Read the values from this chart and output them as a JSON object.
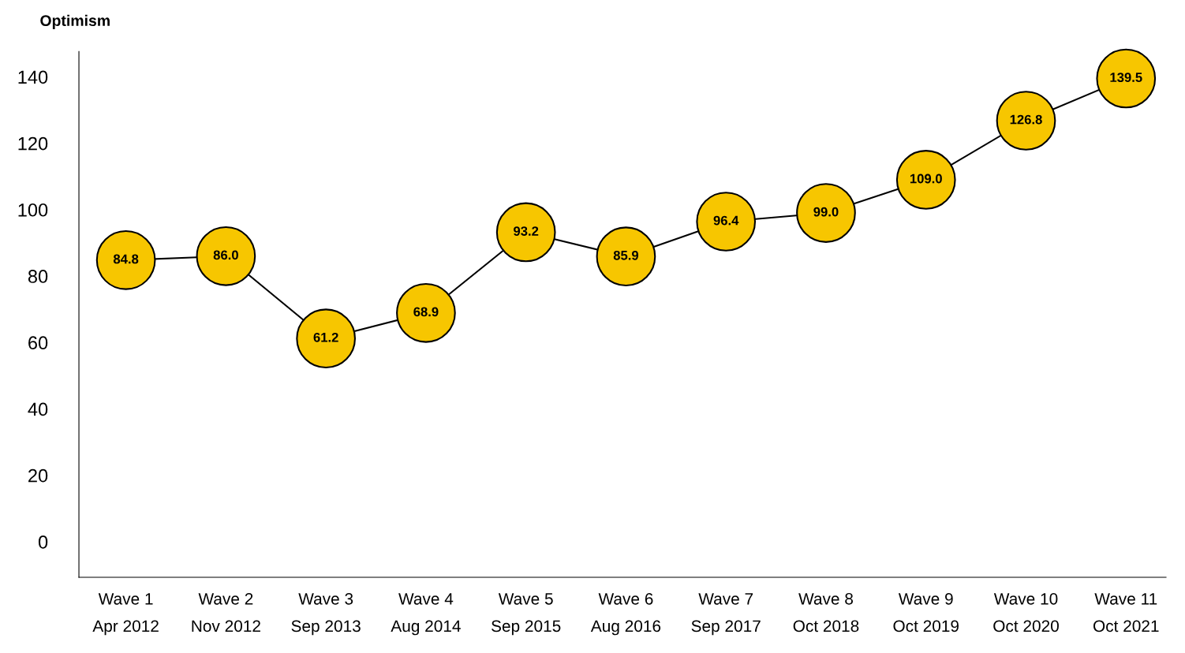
{
  "chart_data": {
    "type": "line",
    "ylabel": "Optimism",
    "categories": [
      "Wave 1\nApr 2012",
      "Wave 2\nNov 2012",
      "Wave 3\nSep 2013",
      "Wave 4\nAug 2014",
      "Wave 5\nSep 2015",
      "Wave 6\nAug 2016",
      "Wave 7\nSep 2017",
      "Wave 8\nOct 2018",
      "Wave 9\nOct 2019",
      "Wave 10\nOct 2020",
      "Wave 11\nOct 2021"
    ],
    "series": [
      {
        "color": "#000000",
        "marker": "none",
        "values": [
          84.8,
          86.0,
          61.2,
          68.9,
          93.2,
          85.9,
          96.4,
          99.0,
          109.0,
          126.8,
          139.5
        ]
      },
      {
        "type": "scatter",
        "color": "#f7c600",
        "marker": "circle",
        "values": [
          84.8,
          86.0,
          61.2,
          68.9,
          93.2,
          85.9,
          96.4,
          99.0,
          109.0,
          126.8,
          139.5
        ],
        "value_labels": [
          "84.8",
          "86.0",
          "61.2",
          "68.9",
          "93.2",
          "85.9",
          "96.4",
          "99.0",
          "109.0",
          "126.8",
          "139.5"
        ]
      }
    ],
    "ylim": [
      -10.7,
      147.6
    ],
    "yticks": [
      0,
      20,
      40,
      60,
      80,
      100,
      120,
      140
    ],
    "line_style": "solid",
    "grid": false,
    "legend": false
  }
}
